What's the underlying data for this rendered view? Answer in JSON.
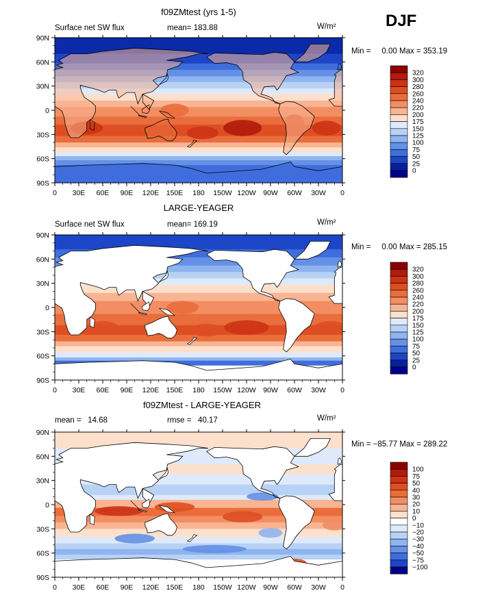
{
  "season_label": "DJF",
  "x_tick_labels": [
    "0",
    "30E",
    "60E",
    "90E",
    "120E",
    "150E",
    "180",
    "150W",
    "120W",
    "90W",
    "60W",
    "30W",
    "0"
  ],
  "y_tick_labels": [
    "90N",
    "60N",
    "30N",
    "0",
    "30S",
    "60S",
    "90S"
  ],
  "panels": [
    {
      "title": "f09ZMtest (yrs 1-5)",
      "left_text": "Surface net SW flux",
      "center_text": "mean= 183.88",
      "units_text": "W/m²",
      "minmax_text": "Min =     0.00 Max = 353.19",
      "colorbar_labels": [
        "320",
        "300",
        "280",
        "260",
        "240",
        "220",
        "200",
        "175",
        "150",
        "125",
        "100",
        "75",
        "50",
        "25",
        "0"
      ],
      "colorbar_colors": [
        "#8b0000",
        "#b11a0c",
        "#cc3315",
        "#dd4f22",
        "#ea6d3c",
        "#f38e63",
        "#f9b493",
        "#fde0cc",
        "#deeafb",
        "#b8d2f6",
        "#8fb4f0",
        "#6490e6",
        "#3f6edc",
        "#1c46c6",
        "#08209c",
        "#00008a"
      ]
    },
    {
      "title": "LARGE-YEAGER",
      "left_text": "Surface net SW flux",
      "center_text": "mean= 169.19",
      "units_text": "W/m²",
      "minmax_text": "Min =     0.00 Max = 285.15",
      "colorbar_labels": [
        "320",
        "300",
        "280",
        "260",
        "240",
        "220",
        "200",
        "175",
        "150",
        "125",
        "100",
        "75",
        "50",
        "25",
        "0"
      ],
      "colorbar_colors": [
        "#8b0000",
        "#b11a0c",
        "#cc3315",
        "#dd4f22",
        "#ea6d3c",
        "#f38e63",
        "#f9b493",
        "#fde0cc",
        "#deeafb",
        "#b8d2f6",
        "#8fb4f0",
        "#6490e6",
        "#3f6edc",
        "#1c46c6",
        "#08209c",
        "#00008a"
      ]
    },
    {
      "title": "f09ZMtest - LARGE-YEAGER",
      "left_text": "mean =   14.68",
      "center_text": "rmse =   40.17",
      "units_text": "W/m²",
      "minmax_text": "Min = −85.77 Max = 289.22",
      "colorbar_labels": [
        "100",
        "75",
        "50",
        "40",
        "30",
        "20",
        "10",
        "0",
        "−10",
        "−20",
        "−30",
        "−40",
        "−50",
        "−75",
        "−100"
      ],
      "colorbar_colors": [
        "#8b0000",
        "#b11a0c",
        "#cc3315",
        "#dd4f22",
        "#ea6d3c",
        "#f38e63",
        "#f9b493",
        "#fde0cc",
        "#ffffff",
        "#deeafb",
        "#b8d2f6",
        "#8fb4f0",
        "#6490e6",
        "#3f6edc",
        "#1c46c6",
        "#00008a"
      ]
    }
  ],
  "chart_data": [
    {
      "type": "heatmap",
      "title": "f09ZMtest (yrs 1-5)",
      "variable": "Surface net SW flux",
      "units": "W/m²",
      "season": "DJF",
      "mean": 183.88,
      "min": 0.0,
      "max": 353.19,
      "contour_levels": [
        0,
        25,
        50,
        75,
        100,
        125,
        150,
        175,
        200,
        220,
        240,
        260,
        280,
        300,
        320
      ],
      "xlim": [
        "0",
        "0"
      ],
      "ylim": [
        "90S",
        "90N"
      ]
    },
    {
      "type": "heatmap",
      "title": "LARGE-YEAGER",
      "variable": "Surface net SW flux",
      "units": "W/m²",
      "season": "DJF",
      "mean": 169.19,
      "min": 0.0,
      "max": 285.15,
      "contour_levels": [
        0,
        25,
        50,
        75,
        100,
        125,
        150,
        175,
        200,
        220,
        240,
        260,
        280,
        300,
        320
      ],
      "xlim": [
        "0",
        "0"
      ],
      "ylim": [
        "90S",
        "90N"
      ]
    },
    {
      "type": "heatmap",
      "title": "f09ZMtest - LARGE-YEAGER",
      "units": "W/m²",
      "season": "DJF",
      "mean": 14.68,
      "rmse": 40.17,
      "min": -85.77,
      "max": 289.22,
      "contour_levels": [
        -100,
        -75,
        -50,
        -40,
        -30,
        -20,
        -10,
        0,
        10,
        20,
        30,
        40,
        50,
        75,
        100
      ],
      "xlim": [
        "0",
        "0"
      ],
      "ylim": [
        "90S",
        "90N"
      ]
    }
  ]
}
